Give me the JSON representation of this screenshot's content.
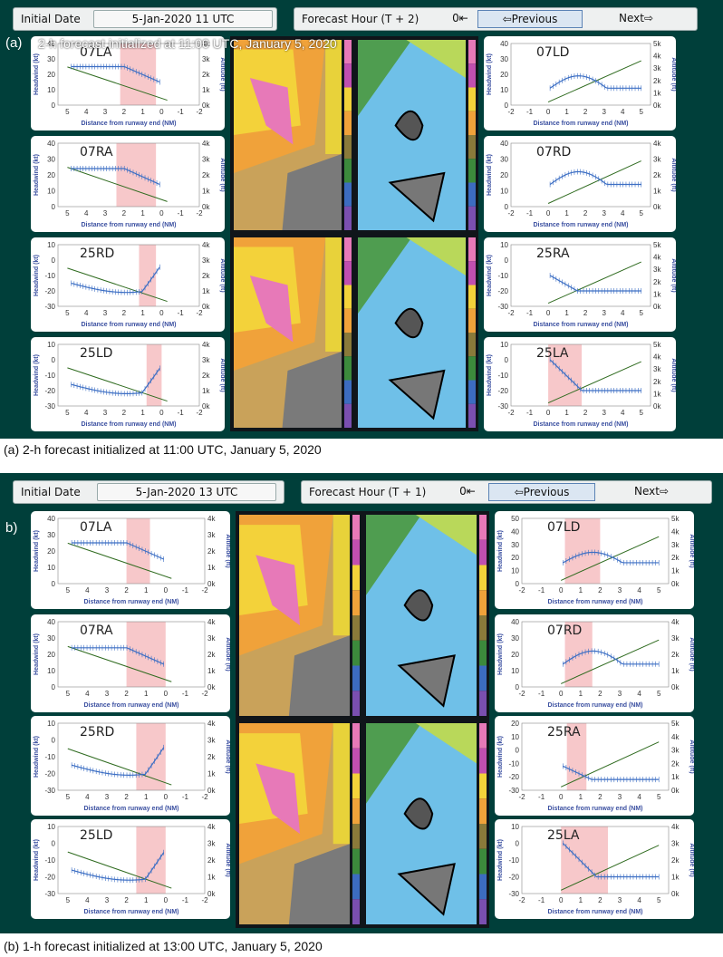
{
  "toolbar": {
    "initial_date_label": "Initial Date",
    "forecast_label_prefix": "Forecast Hour",
    "zero_label": "0⇤",
    "previous_label": "⇦Previous",
    "next_label": "Next⇨"
  },
  "panels": [
    {
      "tag": "(a)",
      "initial_date": "5-Jan-2020 11 UTC",
      "forecast_hour": "(T + 2)",
      "overlay_title": "2-h forecast initialized at 11:00 UTC, January 5, 2020",
      "caption": "(a) 2-h forecast initialized at 11:00 UTC, January 5, 2020"
    },
    {
      "tag": "b)",
      "initial_date": "5-Jan-2020 13 UTC",
      "forecast_hour": "(T + 1)",
      "overlay_title": "",
      "caption": "(b) 1-h forecast initialized at 13:00 UTC, January 5, 2020"
    }
  ],
  "chart_common": {
    "xlabel": "Distance from runway end (NM)",
    "ylabel": "Headwind (kt)",
    "y2label": "Altitude (ft)"
  },
  "charts": [
    {
      "runway": "07LA",
      "side": "left",
      "yticks": [
        "40",
        "30",
        "20",
        "10",
        "0"
      ],
      "alt": [
        "4k",
        "3k",
        "2k",
        "1k",
        "0k"
      ],
      "y": [
        40,
        0
      ],
      "trend": "flat",
      "level": 25,
      "shade": [
        2.2,
        0.3
      ]
    },
    {
      "runway": "07RA",
      "side": "left",
      "yticks": [
        "40",
        "30",
        "20",
        "10",
        "0"
      ],
      "alt": [
        "4k",
        "3k",
        "2k",
        "1k",
        "0k"
      ],
      "y": [
        40,
        0
      ],
      "trend": "flat",
      "level": 24,
      "shade": [
        2.4,
        0.3
      ]
    },
    {
      "runway": "25RD",
      "side": "left",
      "yticks": [
        "10",
        "0",
        "-10",
        "-20",
        "-30"
      ],
      "alt": [
        "4k",
        "3k",
        "2k",
        "1k",
        "0k"
      ],
      "y": [
        10,
        -30
      ],
      "trend": "up_end",
      "level": -15,
      "shade": [
        1.2,
        0.3
      ]
    },
    {
      "runway": "25LD",
      "side": "left",
      "yticks": [
        "10",
        "0",
        "-10",
        "-20",
        "-30"
      ],
      "alt": [
        "4k",
        "3k",
        "2k",
        "1k",
        "0k"
      ],
      "y": [
        10,
        -30
      ],
      "trend": "up_end",
      "level": -16,
      "shade": [
        0.8,
        0.0
      ]
    },
    {
      "runway": "07LD",
      "side": "right",
      "yticks": [
        "40",
        "30",
        "20",
        "10",
        "0"
      ],
      "alt": [
        "5k",
        "4k",
        "3k",
        "2k",
        "1k",
        "0k"
      ],
      "y": [
        40,
        0
      ],
      "trend": "hump",
      "level": 15,
      "shade": null
    },
    {
      "runway": "07RD",
      "side": "right",
      "yticks": [
        "40",
        "30",
        "20",
        "10",
        "0"
      ],
      "alt": [
        "4k",
        "3k",
        "2k",
        "1k",
        "0k"
      ],
      "y": [
        40,
        0
      ],
      "trend": "hump",
      "level": 18,
      "shade": null
    },
    {
      "runway": "25RA",
      "side": "right",
      "yticks": [
        "10",
        "0",
        "-10",
        "-20",
        "-30"
      ],
      "alt": [
        "5k",
        "4k",
        "3k",
        "2k",
        "1k",
        "0k"
      ],
      "y": [
        10,
        -30
      ],
      "trend": "drop",
      "level": -20,
      "shade": null
    },
    {
      "runway": "25LA",
      "side": "right",
      "yticks": [
        "10",
        "0",
        "-10",
        "-20",
        "-30"
      ],
      "alt": [
        "5k",
        "4k",
        "3k",
        "2k",
        "1k",
        "0k"
      ],
      "y": [
        10,
        -30
      ],
      "trend": "drop_start",
      "level": -20,
      "shade": [
        0,
        1.8
      ]
    },
    {
      "runway": "07LA",
      "side": "left",
      "yticks": [
        "40",
        "30",
        "20",
        "10",
        "0"
      ],
      "alt": [
        "4k",
        "3k",
        "2k",
        "1k",
        "0k"
      ],
      "y": [
        40,
        0
      ],
      "trend": "flat",
      "level": 25,
      "shade": [
        2.0,
        0.8
      ]
    },
    {
      "runway": "07RA",
      "side": "left",
      "yticks": [
        "40",
        "30",
        "20",
        "10",
        "0"
      ],
      "alt": [
        "4k",
        "3k",
        "2k",
        "1k",
        "0k"
      ],
      "y": [
        40,
        0
      ],
      "trend": "flat",
      "level": 24,
      "shade": [
        2.0,
        0.0
      ]
    },
    {
      "runway": "25RD",
      "side": "left",
      "yticks": [
        "10",
        "0",
        "-10",
        "-20",
        "-30"
      ],
      "alt": [
        "4k",
        "3k",
        "2k",
        "1k",
        "0k"
      ],
      "y": [
        10,
        -30
      ],
      "trend": "up_end",
      "level": -15,
      "shade": [
        1.5,
        0.0
      ]
    },
    {
      "runway": "25LD",
      "side": "left",
      "yticks": [
        "10",
        "0",
        "-10",
        "-20",
        "-30"
      ],
      "alt": [
        "4k",
        "3k",
        "2k",
        "1k",
        "0k"
      ],
      "y": [
        10,
        -30
      ],
      "trend": "up_end",
      "level": -16,
      "shade": [
        1.5,
        0.0
      ]
    },
    {
      "runway": "07LD",
      "side": "right",
      "yticks": [
        "50",
        "40",
        "30",
        "20",
        "10",
        "0"
      ],
      "alt": [
        "5k",
        "4k",
        "3k",
        "2k",
        "1k",
        "0k"
      ],
      "y": [
        50,
        0
      ],
      "trend": "hump",
      "level": 20,
      "shade": [
        0.2,
        2.0
      ]
    },
    {
      "runway": "07RD",
      "side": "right",
      "yticks": [
        "40",
        "30",
        "20",
        "10",
        "0"
      ],
      "alt": [
        "4k",
        "3k",
        "2k",
        "1k",
        "0k"
      ],
      "y": [
        40,
        0
      ],
      "trend": "hump",
      "level": 18,
      "shade": [
        0.2,
        1.6
      ]
    },
    {
      "runway": "25RA",
      "side": "right",
      "yticks": [
        "20",
        "10",
        "0",
        "-10",
        "-20",
        "-30"
      ],
      "alt": [
        "5k",
        "4k",
        "3k",
        "2k",
        "1k",
        "0k"
      ],
      "y": [
        20,
        -30
      ],
      "trend": "drop",
      "level": -22,
      "shade": [
        0.3,
        1.3
      ]
    },
    {
      "runway": "25LA",
      "side": "right",
      "yticks": [
        "10",
        "0",
        "-10",
        "-20",
        "-30"
      ],
      "alt": [
        "4k",
        "3k",
        "2k",
        "1k",
        "0k"
      ],
      "y": [
        10,
        -30
      ],
      "trend": "drop_start",
      "level": -20,
      "shade": [
        0.0,
        2.4
      ]
    }
  ]
}
